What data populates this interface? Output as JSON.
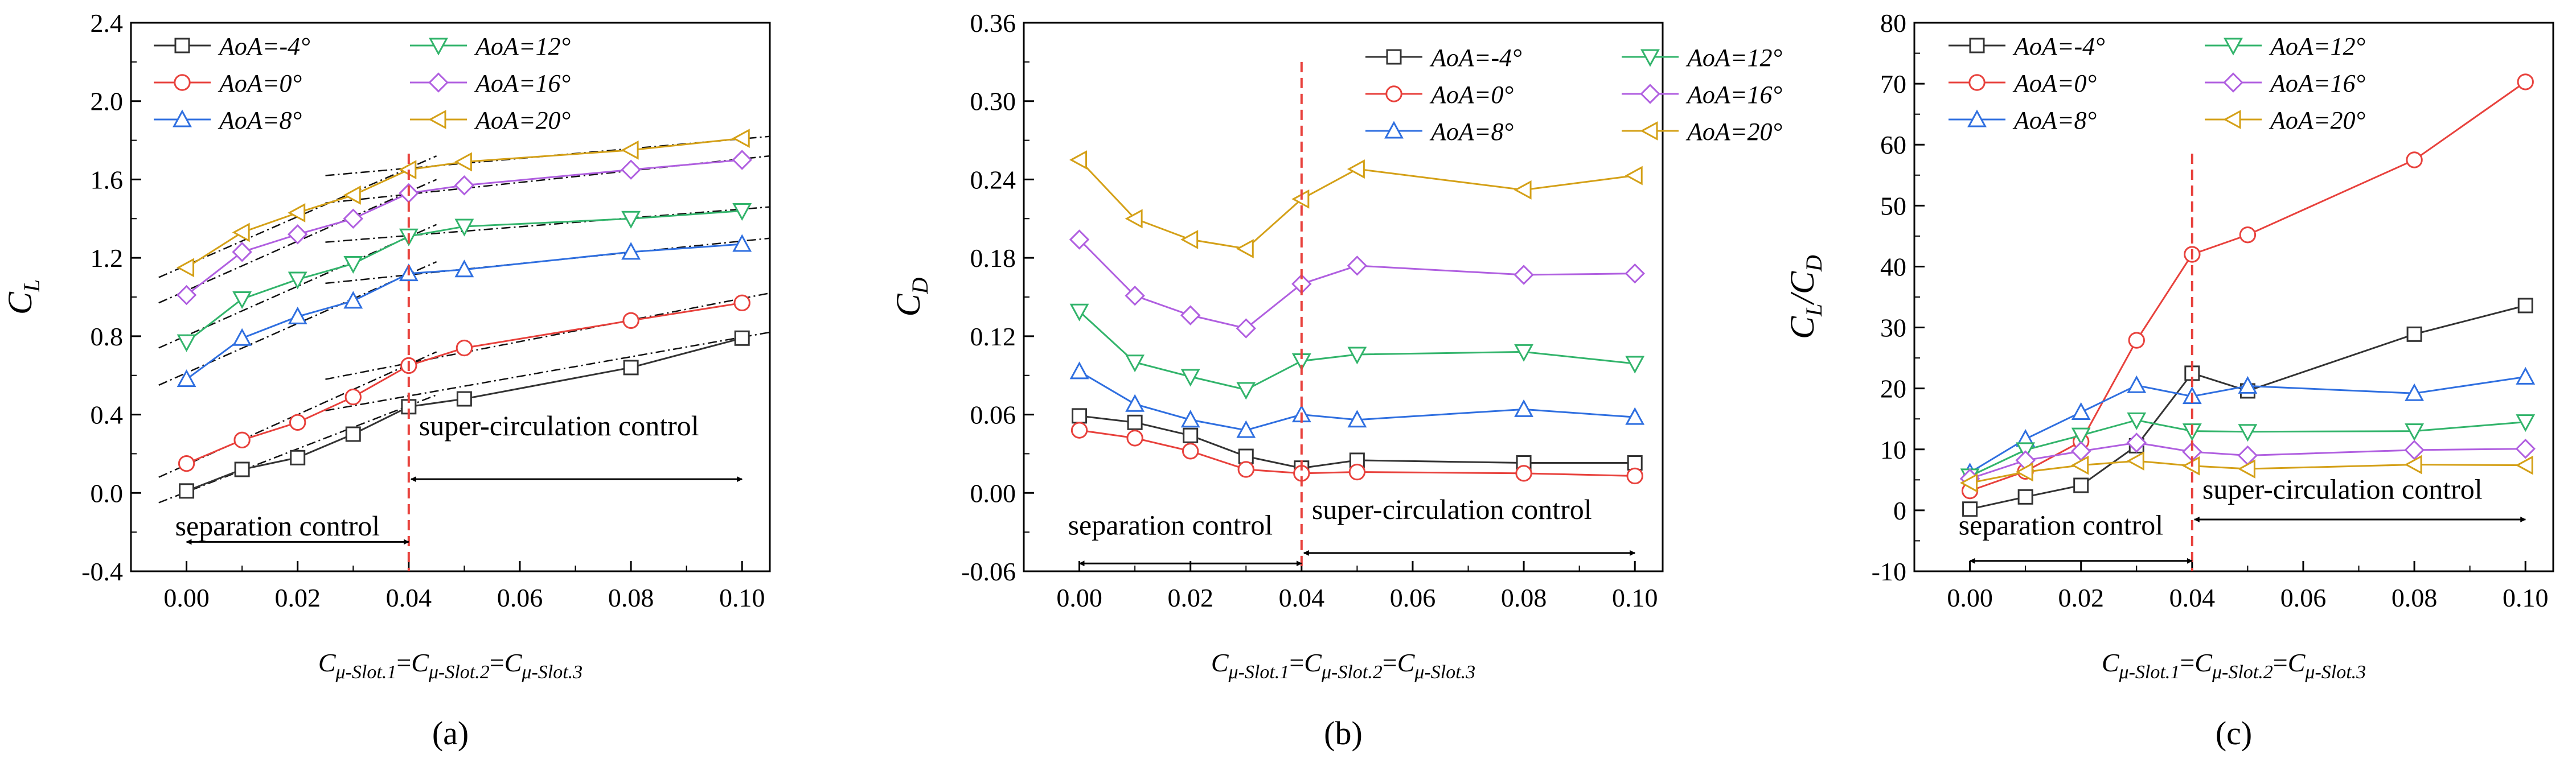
{
  "panel_labels": [
    "(a)",
    "(b)",
    "(c)"
  ],
  "x_label": {
    "main": "C",
    "sub_parts": [
      "μ-Slot.1",
      "=",
      "C",
      "μ-Slot.2",
      "=",
      "C",
      "μ-Slot.3"
    ]
  },
  "legend_labels": [
    "AoA=-4°",
    "AoA=0°",
    "AoA=8°",
    "AoA=12°",
    "AoA=16°",
    "AoA=20°"
  ],
  "colors": {
    "aoa_m4": "#333333",
    "aoa_0": "#e8413c",
    "aoa_8": "#2f6fe0",
    "aoa_12": "#32b46b",
    "aoa_16": "#b05fe0",
    "aoa_20": "#d4a017",
    "divider": "#e8413c",
    "fit": "#111111"
  },
  "chart_data": [
    {
      "type": "line",
      "panel": "(a)",
      "ylabel": "C_L",
      "ylabel_main": "C",
      "ylabel_sub": "L",
      "xlim": [
        -0.01,
        0.105
      ],
      "ylim": [
        -0.4,
        2.4
      ],
      "xticks": [
        "0.00",
        "0.02",
        "0.04",
        "0.06",
        "0.08",
        "0.10"
      ],
      "yticks": [
        "-0.4",
        "0.0",
        "0.4",
        "0.8",
        "1.2",
        "1.6",
        "2.0",
        "2.4"
      ],
      "x": [
        0.0,
        0.01,
        0.02,
        0.03,
        0.04,
        0.05,
        0.08,
        0.1
      ],
      "series": [
        {
          "name": "AoA=-4°",
          "marker": "square",
          "values": [
            0.01,
            0.12,
            0.18,
            0.3,
            0.44,
            0.48,
            0.64,
            0.79
          ]
        },
        {
          "name": "AoA=0°",
          "marker": "circle",
          "values": [
            0.15,
            0.27,
            0.36,
            0.49,
            0.65,
            0.74,
            0.88,
            0.97
          ]
        },
        {
          "name": "AoA=8°",
          "marker": "triangle-up",
          "values": [
            0.58,
            0.79,
            0.9,
            0.98,
            1.12,
            1.14,
            1.23,
            1.27
          ]
        },
        {
          "name": "AoA=12°",
          "marker": "triangle-down",
          "values": [
            0.77,
            0.99,
            1.09,
            1.17,
            1.31,
            1.36,
            1.4,
            1.44
          ]
        },
        {
          "name": "AoA=16°",
          "marker": "diamond",
          "values": [
            1.01,
            1.23,
            1.32,
            1.4,
            1.53,
            1.57,
            1.65,
            1.7
          ]
        },
        {
          "name": "AoA=20°",
          "marker": "triangle-left",
          "values": [
            1.15,
            1.33,
            1.43,
            1.52,
            1.65,
            1.69,
            1.75,
            1.81
          ]
        }
      ],
      "fit_lines": [
        [
          [
            -0.005,
            -0.05
          ],
          [
            0.045,
            0.5
          ]
        ],
        [
          [
            0.025,
            0.42
          ],
          [
            0.105,
            0.82
          ]
        ],
        [
          [
            -0.005,
            0.08
          ],
          [
            0.045,
            0.72
          ]
        ],
        [
          [
            0.025,
            0.58
          ],
          [
            0.105,
            1.02
          ]
        ],
        [
          [
            -0.005,
            0.55
          ],
          [
            0.045,
            1.18
          ]
        ],
        [
          [
            0.025,
            1.07
          ],
          [
            0.105,
            1.3
          ]
        ],
        [
          [
            -0.005,
            0.74
          ],
          [
            0.045,
            1.37
          ]
        ],
        [
          [
            0.025,
            1.28
          ],
          [
            0.105,
            1.46
          ]
        ],
        [
          [
            -0.005,
            0.97
          ],
          [
            0.045,
            1.6
          ]
        ],
        [
          [
            0.025,
            1.48
          ],
          [
            0.105,
            1.72
          ]
        ],
        [
          [
            -0.005,
            1.1
          ],
          [
            0.045,
            1.72
          ]
        ],
        [
          [
            0.025,
            1.62
          ],
          [
            0.105,
            1.82
          ]
        ]
      ],
      "divider_x": 0.04,
      "separation_label": "separation control",
      "super_label": "super-circulation control",
      "sep_arrow_y": -0.25,
      "sep_text_y": -0.17,
      "sup_arrow_y": 0.07,
      "sup_text_y": 0.34,
      "legend_columns": 2
    },
    {
      "type": "line",
      "panel": "(b)",
      "ylabel": "C_D",
      "ylabel_main": "C",
      "ylabel_sub": "D",
      "xlim": [
        -0.01,
        0.105
      ],
      "ylim": [
        -0.06,
        0.36
      ],
      "xticks": [
        "0.00",
        "0.02",
        "0.04",
        "0.06",
        "0.08",
        "0.10"
      ],
      "yticks": [
        "-0.06",
        "0.00",
        "0.06",
        "0.12",
        "0.18",
        "0.24",
        "0.30",
        "0.36"
      ],
      "x": [
        0.0,
        0.01,
        0.02,
        0.03,
        0.04,
        0.05,
        0.08,
        0.1
      ],
      "series": [
        {
          "name": "AoA=-4°",
          "marker": "square",
          "values": [
            0.059,
            0.054,
            0.044,
            0.028,
            0.019,
            0.025,
            0.023,
            0.023
          ]
        },
        {
          "name": "AoA=0°",
          "marker": "circle",
          "values": [
            0.048,
            0.042,
            0.032,
            0.018,
            0.015,
            0.016,
            0.015,
            0.013
          ]
        },
        {
          "name": "AoA=8°",
          "marker": "triangle-up",
          "values": [
            0.093,
            0.068,
            0.056,
            0.048,
            0.06,
            0.056,
            0.064,
            0.058
          ]
        },
        {
          "name": "AoA=12°",
          "marker": "triangle-down",
          "values": [
            0.139,
            0.1,
            0.089,
            0.079,
            0.101,
            0.106,
            0.108,
            0.099
          ]
        },
        {
          "name": "AoA=16°",
          "marker": "diamond",
          "values": [
            0.194,
            0.151,
            0.136,
            0.126,
            0.16,
            0.174,
            0.167,
            0.168
          ]
        },
        {
          "name": "AoA=20°",
          "marker": "triangle-left",
          "values": [
            0.255,
            0.21,
            0.194,
            0.187,
            0.225,
            0.248,
            0.232,
            0.243
          ]
        }
      ],
      "fit_lines": [],
      "divider_x": 0.04,
      "divider_top": 0.33,
      "separation_label": "separation control",
      "super_label": "super-circulation control",
      "sep_arrow_y": -0.054,
      "sep_text_y": -0.025,
      "sup_arrow_y": -0.046,
      "sup_text_y": -0.013,
      "legend_columns": 2
    },
    {
      "type": "line",
      "panel": "(c)",
      "ylabel": "C_L/C_D",
      "ylabel_main": "C",
      "ylabel_sub": "L",
      "ylabel_rest": "/C",
      "ylabel_sub2": "D",
      "xlim": [
        -0.01,
        0.105
      ],
      "ylim": [
        -10,
        80
      ],
      "xticks": [
        "0.00",
        "0.02",
        "0.04",
        "0.06",
        "0.08",
        "0.10"
      ],
      "yticks": [
        "-10",
        "0",
        "10",
        "20",
        "30",
        "40",
        "50",
        "60",
        "70",
        "80"
      ],
      "x": [
        0.0,
        0.01,
        0.02,
        0.03,
        0.04,
        0.05,
        0.08,
        0.1
      ],
      "series": [
        {
          "name": "AoA=-4°",
          "marker": "square",
          "values": [
            0.2,
            2.2,
            4.1,
            10.6,
            22.5,
            19.6,
            28.9,
            33.6
          ]
        },
        {
          "name": "AoA=0°",
          "marker": "circle",
          "values": [
            3.2,
            6.4,
            11.3,
            27.9,
            42.0,
            45.2,
            57.5,
            70.3
          ]
        },
        {
          "name": "AoA=8°",
          "marker": "triangle-up",
          "values": [
            6.2,
            11.7,
            16.1,
            20.5,
            18.7,
            20.4,
            19.2,
            21.9
          ]
        },
        {
          "name": "AoA=12°",
          "marker": "triangle-down",
          "values": [
            5.6,
            9.9,
            12.3,
            14.8,
            13.0,
            12.9,
            13.0,
            14.5
          ]
        },
        {
          "name": "AoA=16°",
          "marker": "diamond",
          "values": [
            5.2,
            8.2,
            9.7,
            11.1,
            9.6,
            9.0,
            9.9,
            10.1
          ]
        },
        {
          "name": "AoA=20°",
          "marker": "triangle-left",
          "values": [
            4.5,
            6.3,
            7.4,
            8.1,
            7.3,
            6.8,
            7.5,
            7.4
          ]
        }
      ],
      "fit_lines": [],
      "divider_x": 0.04,
      "separation_label": "separation control",
      "super_label": "super-circulation control",
      "sep_arrow_y": -8.3,
      "sep_text_y": -2.5,
      "sup_arrow_y": -1.5,
      "sup_text_y": 3.4,
      "legend_columns": 2
    }
  ]
}
